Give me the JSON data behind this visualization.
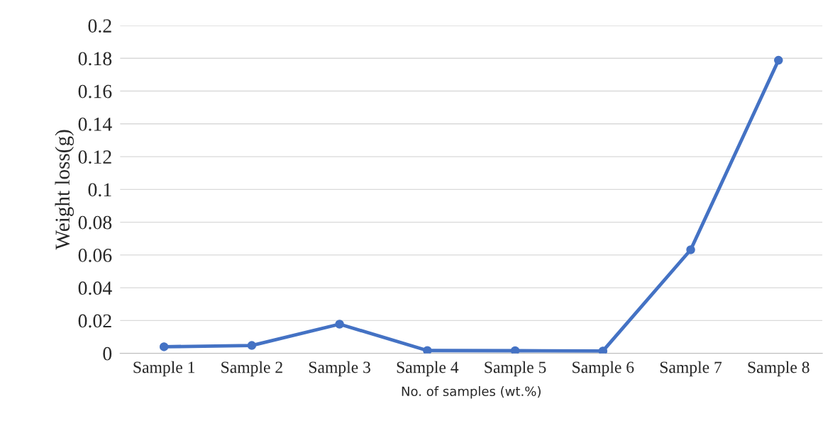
{
  "chart_data": {
    "type": "line",
    "xlabel": "No. of samples (wt.%)",
    "ylabel": "Weight loss(g)",
    "categories": [
      "Sample 1",
      "Sample 2",
      "Sample 3",
      "Sample 4",
      "Sample 5",
      "Sample 6",
      "Sample 7",
      "Sample 8"
    ],
    "series": [
      {
        "color": "#4472c4",
        "values": [
          0.004,
          0.0048,
          0.0178,
          0.0017,
          0.0016,
          0.0014,
          0.0632,
          0.1788
        ]
      }
    ],
    "ylim": [
      0,
      0.2
    ],
    "yticks": [
      0,
      0.02,
      0.04,
      0.06,
      0.08,
      0.1,
      0.12,
      0.14,
      0.16,
      0.18,
      0.2
    ],
    "grid": "y",
    "marker": "circle",
    "line_style": "solid"
  }
}
